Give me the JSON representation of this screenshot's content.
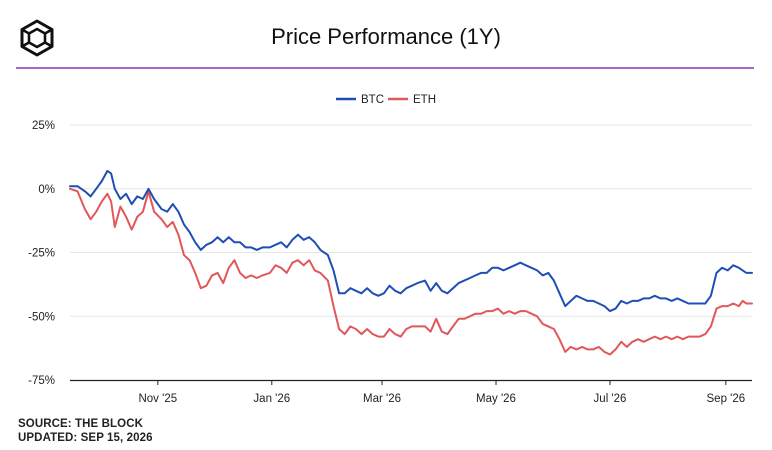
{
  "logo": {
    "icon": "the-block-cube-icon"
  },
  "header": {
    "title": "Price Performance (1Y)"
  },
  "footer": {
    "source": "SOURCE: THE BLOCK",
    "updated": "UPDATED: SEP 15, 2026"
  },
  "chart_data": {
    "type": "line",
    "title": "Price Performance (1Y)",
    "xlabel": "",
    "ylabel": "",
    "ylim": [
      -75,
      25
    ],
    "yticks": [
      25,
      0,
      -25,
      -50,
      -75
    ],
    "ytick_labels": [
      "25%",
      "0%",
      "-25%",
      "-50%",
      "-75%"
    ],
    "x_tick_labels": [
      "Nov '25",
      "Jan '26",
      "Mar '26",
      "May '26",
      "Jul '26",
      "Sep '26"
    ],
    "x_tick_dates": [
      "2025-11-01",
      "2026-01-01",
      "2026-03-01",
      "2026-05-01",
      "2026-07-01",
      "2026-09-01"
    ],
    "x_range": [
      "2025-09-15",
      "2026-09-15"
    ],
    "grid": true,
    "legend_position": "top-center",
    "series": [
      {
        "name": "BTC",
        "color": "#1f4fb5",
        "points": [
          [
            "2025-09-15",
            1
          ],
          [
            "2025-09-19",
            1
          ],
          [
            "2025-09-23",
            -1
          ],
          [
            "2025-09-26",
            -3
          ],
          [
            "2025-09-29",
            0
          ],
          [
            "2025-10-02",
            3
          ],
          [
            "2025-10-05",
            7
          ],
          [
            "2025-10-07",
            6
          ],
          [
            "2025-10-09",
            0
          ],
          [
            "2025-10-12",
            -4
          ],
          [
            "2025-10-15",
            -2
          ],
          [
            "2025-10-18",
            -6
          ],
          [
            "2025-10-21",
            -3
          ],
          [
            "2025-10-24",
            -4
          ],
          [
            "2025-10-27",
            0
          ],
          [
            "2025-10-30",
            -4
          ],
          [
            "2025-11-03",
            -8
          ],
          [
            "2025-11-06",
            -9
          ],
          [
            "2025-11-09",
            -6
          ],
          [
            "2025-11-12",
            -9
          ],
          [
            "2025-11-15",
            -14
          ],
          [
            "2025-11-18",
            -17
          ],
          [
            "2025-11-21",
            -21
          ],
          [
            "2025-11-24",
            -24
          ],
          [
            "2025-11-27",
            -22
          ],
          [
            "2025-11-30",
            -21
          ],
          [
            "2025-12-03",
            -19
          ],
          [
            "2025-12-06",
            -21
          ],
          [
            "2025-12-09",
            -19
          ],
          [
            "2025-12-12",
            -21
          ],
          [
            "2025-12-15",
            -21
          ],
          [
            "2025-12-18",
            -23
          ],
          [
            "2025-12-21",
            -23
          ],
          [
            "2025-12-24",
            -24
          ],
          [
            "2025-12-27",
            -23
          ],
          [
            "2025-12-31",
            -23
          ],
          [
            "2026-01-03",
            -22
          ],
          [
            "2026-01-06",
            -21
          ],
          [
            "2026-01-09",
            -23
          ],
          [
            "2026-01-12",
            -20
          ],
          [
            "2026-01-15",
            -18
          ],
          [
            "2026-01-18",
            -20
          ],
          [
            "2026-01-21",
            -19
          ],
          [
            "2026-01-24",
            -21
          ],
          [
            "2026-01-27",
            -24
          ],
          [
            "2026-01-31",
            -26
          ],
          [
            "2026-02-03",
            -32
          ],
          [
            "2026-02-06",
            -41
          ],
          [
            "2026-02-09",
            -41
          ],
          [
            "2026-02-12",
            -39
          ],
          [
            "2026-02-15",
            -40
          ],
          [
            "2026-02-18",
            -41
          ],
          [
            "2026-02-21",
            -39
          ],
          [
            "2026-02-24",
            -41
          ],
          [
            "2026-02-27",
            -42
          ],
          [
            "2026-03-02",
            -41
          ],
          [
            "2026-03-05",
            -38
          ],
          [
            "2026-03-08",
            -40
          ],
          [
            "2026-03-11",
            -41
          ],
          [
            "2026-03-14",
            -39
          ],
          [
            "2026-03-17",
            -38
          ],
          [
            "2026-03-20",
            -37
          ],
          [
            "2026-03-24",
            -36
          ],
          [
            "2026-03-27",
            -40
          ],
          [
            "2026-03-30",
            -37
          ],
          [
            "2026-04-02",
            -40
          ],
          [
            "2026-04-05",
            -41
          ],
          [
            "2026-04-08",
            -39
          ],
          [
            "2026-04-11",
            -37
          ],
          [
            "2026-04-14",
            -36
          ],
          [
            "2026-04-17",
            -35
          ],
          [
            "2026-04-20",
            -34
          ],
          [
            "2026-04-23",
            -33
          ],
          [
            "2026-04-26",
            -33
          ],
          [
            "2026-04-29",
            -31
          ],
          [
            "2026-05-02",
            -31
          ],
          [
            "2026-05-05",
            -32
          ],
          [
            "2026-05-08",
            -31
          ],
          [
            "2026-05-11",
            -30
          ],
          [
            "2026-05-14",
            -29
          ],
          [
            "2026-05-17",
            -30
          ],
          [
            "2026-05-20",
            -31
          ],
          [
            "2026-05-23",
            -32
          ],
          [
            "2026-05-26",
            -34
          ],
          [
            "2026-05-29",
            -33
          ],
          [
            "2026-06-01",
            -36
          ],
          [
            "2026-06-04",
            -41
          ],
          [
            "2026-06-07",
            -46
          ],
          [
            "2026-06-10",
            -44
          ],
          [
            "2026-06-13",
            -42
          ],
          [
            "2026-06-16",
            -43
          ],
          [
            "2026-06-19",
            -44
          ],
          [
            "2026-06-22",
            -44
          ],
          [
            "2026-06-25",
            -45
          ],
          [
            "2026-06-28",
            -46
          ],
          [
            "2026-07-01",
            -48
          ],
          [
            "2026-07-04",
            -47
          ],
          [
            "2026-07-07",
            -44
          ],
          [
            "2026-07-10",
            -45
          ],
          [
            "2026-07-13",
            -44
          ],
          [
            "2026-07-16",
            -44
          ],
          [
            "2026-07-19",
            -43
          ],
          [
            "2026-07-22",
            -43
          ],
          [
            "2026-07-25",
            -42
          ],
          [
            "2026-07-28",
            -43
          ],
          [
            "2026-07-31",
            -43
          ],
          [
            "2026-08-03",
            -44
          ],
          [
            "2026-08-06",
            -43
          ],
          [
            "2026-08-09",
            -44
          ],
          [
            "2026-08-12",
            -45
          ],
          [
            "2026-08-15",
            -45
          ],
          [
            "2026-08-18",
            -45
          ],
          [
            "2026-08-21",
            -45
          ],
          [
            "2026-08-24",
            -42
          ],
          [
            "2026-08-27",
            -33
          ],
          [
            "2026-08-30",
            -31
          ],
          [
            "2026-09-02",
            -32
          ],
          [
            "2026-09-05",
            -30
          ],
          [
            "2026-09-08",
            -31
          ],
          [
            "2026-09-10",
            -32
          ],
          [
            "2026-09-12",
            -33
          ],
          [
            "2026-09-15",
            -33
          ]
        ]
      },
      {
        "name": "ETH",
        "color": "#e0585a",
        "points": [
          [
            "2025-09-15",
            0
          ],
          [
            "2025-09-19",
            -1
          ],
          [
            "2025-09-23",
            -8
          ],
          [
            "2025-09-26",
            -12
          ],
          [
            "2025-09-29",
            -9
          ],
          [
            "2025-10-02",
            -5
          ],
          [
            "2025-10-05",
            -2
          ],
          [
            "2025-10-07",
            -5
          ],
          [
            "2025-10-09",
            -15
          ],
          [
            "2025-10-12",
            -7
          ],
          [
            "2025-10-15",
            -11
          ],
          [
            "2025-10-18",
            -16
          ],
          [
            "2025-10-21",
            -11
          ],
          [
            "2025-10-24",
            -9
          ],
          [
            "2025-10-27",
            -1
          ],
          [
            "2025-10-30",
            -9
          ],
          [
            "2025-11-03",
            -12
          ],
          [
            "2025-11-06",
            -15
          ],
          [
            "2025-11-09",
            -13
          ],
          [
            "2025-11-12",
            -18
          ],
          [
            "2025-11-15",
            -26
          ],
          [
            "2025-11-18",
            -28
          ],
          [
            "2025-11-21",
            -33
          ],
          [
            "2025-11-24",
            -39
          ],
          [
            "2025-11-27",
            -38
          ],
          [
            "2025-11-30",
            -34
          ],
          [
            "2025-12-03",
            -33
          ],
          [
            "2025-12-06",
            -37
          ],
          [
            "2025-12-09",
            -31
          ],
          [
            "2025-12-12",
            -28
          ],
          [
            "2025-12-15",
            -33
          ],
          [
            "2025-12-18",
            -35
          ],
          [
            "2025-12-21",
            -34
          ],
          [
            "2025-12-24",
            -35
          ],
          [
            "2025-12-27",
            -34
          ],
          [
            "2025-12-31",
            -33
          ],
          [
            "2026-01-03",
            -30
          ],
          [
            "2026-01-06",
            -31
          ],
          [
            "2026-01-09",
            -33
          ],
          [
            "2026-01-12",
            -29
          ],
          [
            "2026-01-15",
            -28
          ],
          [
            "2026-01-18",
            -30
          ],
          [
            "2026-01-21",
            -28
          ],
          [
            "2026-01-24",
            -32
          ],
          [
            "2026-01-27",
            -33
          ],
          [
            "2026-01-31",
            -36
          ],
          [
            "2026-02-03",
            -46
          ],
          [
            "2026-02-06",
            -55
          ],
          [
            "2026-02-09",
            -57
          ],
          [
            "2026-02-12",
            -54
          ],
          [
            "2026-02-15",
            -55
          ],
          [
            "2026-02-18",
            -57
          ],
          [
            "2026-02-21",
            -55
          ],
          [
            "2026-02-24",
            -57
          ],
          [
            "2026-02-27",
            -58
          ],
          [
            "2026-03-02",
            -58
          ],
          [
            "2026-03-05",
            -55
          ],
          [
            "2026-03-08",
            -57
          ],
          [
            "2026-03-11",
            -58
          ],
          [
            "2026-03-14",
            -55
          ],
          [
            "2026-03-17",
            -54
          ],
          [
            "2026-03-20",
            -54
          ],
          [
            "2026-03-24",
            -54
          ],
          [
            "2026-03-27",
            -56
          ],
          [
            "2026-03-30",
            -51
          ],
          [
            "2026-04-02",
            -56
          ],
          [
            "2026-04-05",
            -57
          ],
          [
            "2026-04-08",
            -54
          ],
          [
            "2026-04-11",
            -51
          ],
          [
            "2026-04-14",
            -51
          ],
          [
            "2026-04-17",
            -50
          ],
          [
            "2026-04-20",
            -49
          ],
          [
            "2026-04-23",
            -49
          ],
          [
            "2026-04-26",
            -48
          ],
          [
            "2026-04-29",
            -48
          ],
          [
            "2026-05-02",
            -47
          ],
          [
            "2026-05-05",
            -49
          ],
          [
            "2026-05-08",
            -48
          ],
          [
            "2026-05-11",
            -49
          ],
          [
            "2026-05-14",
            -48
          ],
          [
            "2026-05-17",
            -48
          ],
          [
            "2026-05-20",
            -49
          ],
          [
            "2026-05-23",
            -50
          ],
          [
            "2026-05-26",
            -53
          ],
          [
            "2026-05-29",
            -54
          ],
          [
            "2026-06-01",
            -55
          ],
          [
            "2026-06-04",
            -59
          ],
          [
            "2026-06-07",
            -64
          ],
          [
            "2026-06-10",
            -62
          ],
          [
            "2026-06-13",
            -63
          ],
          [
            "2026-06-16",
            -62
          ],
          [
            "2026-06-19",
            -63
          ],
          [
            "2026-06-22",
            -63
          ],
          [
            "2026-06-25",
            -62
          ],
          [
            "2026-06-28",
            -64
          ],
          [
            "2026-07-01",
            -65
          ],
          [
            "2026-07-04",
            -63
          ],
          [
            "2026-07-07",
            -60
          ],
          [
            "2026-07-10",
            -62
          ],
          [
            "2026-07-13",
            -60
          ],
          [
            "2026-07-16",
            -59
          ],
          [
            "2026-07-19",
            -60
          ],
          [
            "2026-07-22",
            -59
          ],
          [
            "2026-07-25",
            -58
          ],
          [
            "2026-07-28",
            -59
          ],
          [
            "2026-07-31",
            -58
          ],
          [
            "2026-08-03",
            -59
          ],
          [
            "2026-08-06",
            -58
          ],
          [
            "2026-08-09",
            -59
          ],
          [
            "2026-08-12",
            -58
          ],
          [
            "2026-08-15",
            -58
          ],
          [
            "2026-08-18",
            -58
          ],
          [
            "2026-08-21",
            -57
          ],
          [
            "2026-08-24",
            -54
          ],
          [
            "2026-08-27",
            -47
          ],
          [
            "2026-08-30",
            -46
          ],
          [
            "2026-09-02",
            -46
          ],
          [
            "2026-09-05",
            -45
          ],
          [
            "2026-09-08",
            -46
          ],
          [
            "2026-09-10",
            -44
          ],
          [
            "2026-09-12",
            -45
          ],
          [
            "2026-09-15",
            -45
          ]
        ]
      }
    ]
  }
}
